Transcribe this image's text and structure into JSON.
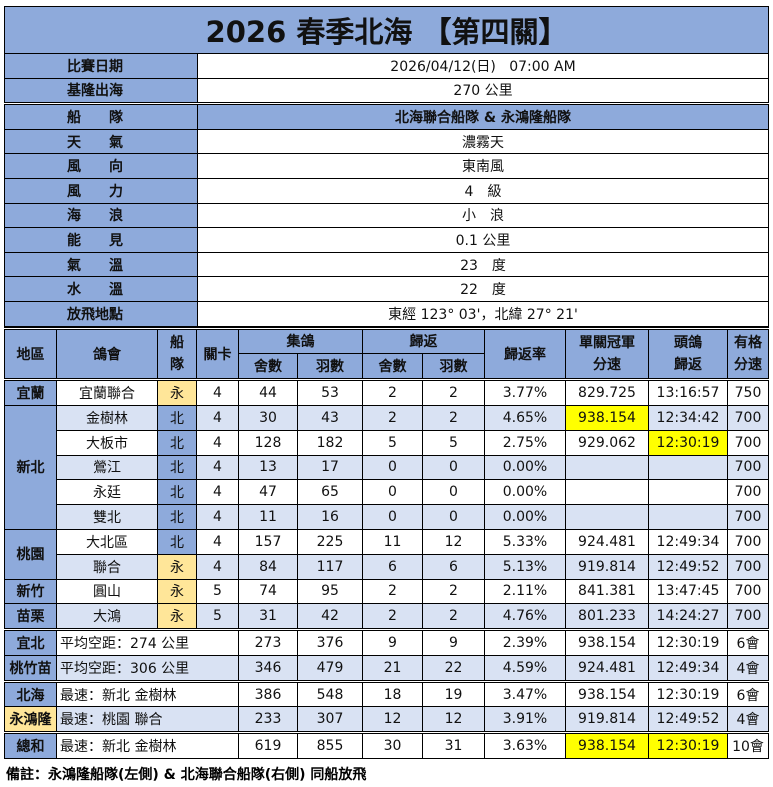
{
  "title": "2026 春季北海 【第四關】",
  "info": [
    {
      "label": "比賽日期",
      "value": "2026/04/12(日)   07:00 AM",
      "header": false
    },
    {
      "label": "基隆出海",
      "value": "270 公里",
      "header": false
    },
    {
      "label": "船　　隊",
      "value": "北海聯合船隊 & 永鴻隆船隊",
      "header": true
    },
    {
      "label": "天　　氣",
      "value": "濃霧天",
      "header": false
    },
    {
      "label": "風　　向",
      "value": "東南風",
      "header": false
    },
    {
      "label": "風　　力",
      "value": "4　級",
      "header": false
    },
    {
      "label": "海　　浪",
      "value": "小　浪",
      "header": false
    },
    {
      "label": "能　　見",
      "value": "0.1 公里",
      "header": false
    },
    {
      "label": "氣　　溫",
      "value": "23　度",
      "header": false
    },
    {
      "label": "水　　溫",
      "value": "22　度",
      "header": false
    },
    {
      "label": "放飛地點",
      "value": "東經 123° 03'，北緯 27° 21'",
      "header": false
    }
  ],
  "columns": {
    "region": "地區",
    "club": "鴿會",
    "fleet": "船隊",
    "checkpoint": "關卡",
    "collected": "集鴿",
    "returned": "歸返",
    "lofts": "舍數",
    "birds": "羽數",
    "return_rate": "歸返率",
    "champion_speed": "單關冠軍分速",
    "first_bird": "頭鴿歸返",
    "qualify_speed": "有格分速"
  },
  "colors": {
    "header": "#8eaadb",
    "stripe": "#d9e2f3",
    "fleet_yong": "#ffe699",
    "fleet_bei": "#8eaadb",
    "highlight": "#ffff00"
  },
  "regions": [
    {
      "name": "宜蘭",
      "rows": [
        {
          "club": "宜蘭聯合",
          "fleet": "永",
          "cp": "4",
          "c_lofts": "44",
          "c_birds": "53",
          "r_lofts": "2",
          "r_birds": "2",
          "rate": "3.77%",
          "speed": "829.725",
          "time": "13:16:57",
          "q": "750"
        }
      ]
    },
    {
      "name": "新北",
      "rows": [
        {
          "club": "金樹林",
          "fleet": "北",
          "cp": "4",
          "c_lofts": "30",
          "c_birds": "43",
          "r_lofts": "2",
          "r_birds": "2",
          "rate": "4.65%",
          "speed": "938.154",
          "time": "12:34:42",
          "q": "700",
          "hl_speed": true
        },
        {
          "club": "大板市",
          "fleet": "北",
          "cp": "4",
          "c_lofts": "128",
          "c_birds": "182",
          "r_lofts": "5",
          "r_birds": "5",
          "rate": "2.75%",
          "speed": "929.062",
          "time": "12:30:19",
          "q": "700",
          "hl_time": true
        },
        {
          "club": "鶯江",
          "fleet": "北",
          "cp": "4",
          "c_lofts": "13",
          "c_birds": "17",
          "r_lofts": "0",
          "r_birds": "0",
          "rate": "0.00%",
          "speed": "",
          "time": "",
          "q": "700"
        },
        {
          "club": "永廷",
          "fleet": "北",
          "cp": "4",
          "c_lofts": "47",
          "c_birds": "65",
          "r_lofts": "0",
          "r_birds": "0",
          "rate": "0.00%",
          "speed": "",
          "time": "",
          "q": "700"
        },
        {
          "club": "雙北",
          "fleet": "北",
          "cp": "4",
          "c_lofts": "11",
          "c_birds": "16",
          "r_lofts": "0",
          "r_birds": "0",
          "rate": "0.00%",
          "speed": "",
          "time": "",
          "q": "700"
        }
      ]
    },
    {
      "name": "桃園",
      "rows": [
        {
          "club": "大北區",
          "fleet": "北",
          "cp": "4",
          "c_lofts": "157",
          "c_birds": "225",
          "r_lofts": "11",
          "r_birds": "12",
          "rate": "5.33%",
          "speed": "924.481",
          "time": "12:49:34",
          "q": "700"
        },
        {
          "club": "聯合",
          "fleet": "永",
          "cp": "4",
          "c_lofts": "84",
          "c_birds": "117",
          "r_lofts": "6",
          "r_birds": "6",
          "rate": "5.13%",
          "speed": "919.814",
          "time": "12:49:52",
          "q": "700"
        }
      ]
    },
    {
      "name": "新竹",
      "rows": [
        {
          "club": "圓山",
          "fleet": "永",
          "cp": "5",
          "c_lofts": "74",
          "c_birds": "95",
          "r_lofts": "2",
          "r_birds": "2",
          "rate": "2.11%",
          "speed": "841.381",
          "time": "13:47:45",
          "q": "700"
        }
      ]
    },
    {
      "name": "苗栗",
      "rows": [
        {
          "club": "大鴻",
          "fleet": "永",
          "cp": "5",
          "c_lofts": "31",
          "c_birds": "42",
          "r_lofts": "2",
          "r_birds": "2",
          "rate": "4.76%",
          "speed": "801.233",
          "time": "14:24:27",
          "q": "700"
        }
      ]
    }
  ],
  "summaries": [
    [
      {
        "label": "宜北",
        "desc": "平均空距：274 公里",
        "c_lofts": "273",
        "c_birds": "376",
        "r_lofts": "9",
        "r_birds": "9",
        "rate": "2.39%",
        "speed": "938.154",
        "time": "12:30:19",
        "q": "6會"
      },
      {
        "label": "桃竹苗",
        "desc": "平均空距：306 公里",
        "c_lofts": "346",
        "c_birds": "479",
        "r_lofts": "21",
        "r_birds": "22",
        "rate": "4.59%",
        "speed": "924.481",
        "time": "12:49:34",
        "q": "4會"
      }
    ],
    [
      {
        "label": "北海",
        "desc": "最速：新北 金樹林",
        "c_lofts": "386",
        "c_birds": "548",
        "r_lofts": "18",
        "r_birds": "19",
        "rate": "3.47%",
        "speed": "938.154",
        "time": "12:30:19",
        "q": "6會"
      },
      {
        "label": "永鴻隆",
        "desc": "最速：桃園 聯合",
        "c_lofts": "233",
        "c_birds": "307",
        "r_lofts": "12",
        "r_birds": "12",
        "rate": "3.91%",
        "speed": "919.814",
        "time": "12:49:52",
        "q": "4會",
        "orange": true
      }
    ],
    [
      {
        "label": "總和",
        "desc": "最速：新北 金樹林",
        "c_lofts": "619",
        "c_birds": "855",
        "r_lofts": "30",
        "r_birds": "31",
        "rate": "3.63%",
        "speed": "938.154",
        "time": "12:30:19",
        "q": "10會",
        "hl": true
      }
    ]
  ],
  "note": "備註：永鴻隆船隊(左側) & 北海聯合船隊(右側) 同船放飛"
}
